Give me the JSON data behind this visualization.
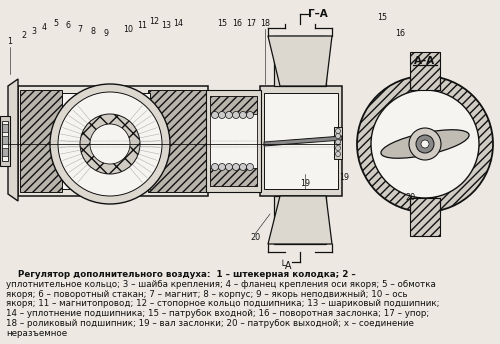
{
  "bg_color": "#ede9e2",
  "line_color": "#111111",
  "caption_bold_text": "Регулятор дополнительного воздуха:",
  "caption_lines": [
    "    Регулятор дополнительного воздуха:  1 – штекерная колодка; 2 –",
    "уплотнительное кольцо; 3 – шайба крепления; 4 – фланец крепления оси якоря; 5 – обмотка",
    "якоря; 6 – поворотный стакан; 7 – магнит; 8 – корпус; 9 – якорь неподвижный; 10 – ось",
    "якоря; 11 – магнитопровод; 12 – стопорное кольцо подшипника; 13 – шариковый подшипник;",
    "14 – уплотнение подшипника; 15 – патрубок входной; 16 – поворотная заслонка; 17 – упор;",
    "18 – роликовый подшипник; 19 – вал заслонки; 20 – патрубок выходной; x – соединение",
    "неразъемное"
  ],
  "section_top": "Г–А",
  "section_right": "А–А",
  "section_bot": "└А",
  "num_positions": [
    [
      "1",
      10,
      302
    ],
    [
      "2",
      24,
      308
    ],
    [
      "3",
      34,
      313
    ],
    [
      "4",
      44,
      317
    ],
    [
      "5",
      56,
      320
    ],
    [
      "6",
      68,
      318
    ],
    [
      "7",
      80,
      315
    ],
    [
      "8",
      93,
      312
    ],
    [
      "9",
      106,
      310
    ],
    [
      "10",
      128,
      315
    ],
    [
      "11",
      142,
      319
    ],
    [
      "12",
      154,
      322
    ],
    [
      "13",
      166,
      319
    ],
    [
      "14",
      178,
      320
    ],
    [
      "15",
      222,
      320
    ],
    [
      "16",
      237,
      320
    ],
    [
      "17",
      251,
      320
    ],
    [
      "18",
      265,
      320
    ],
    [
      "15",
      382,
      326
    ],
    [
      "16",
      400,
      310
    ],
    [
      "19",
      305,
      160
    ],
    [
      "19",
      344,
      166
    ],
    [
      "20",
      255,
      106
    ],
    [
      "20",
      410,
      146
    ]
  ]
}
